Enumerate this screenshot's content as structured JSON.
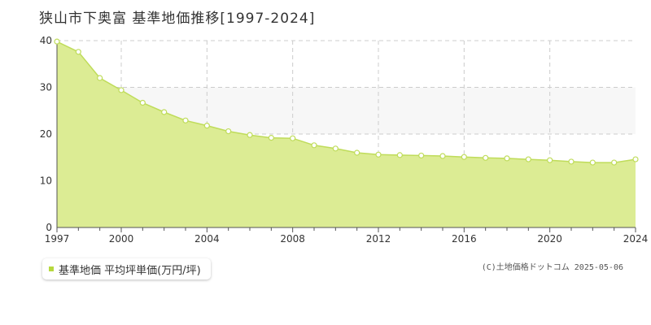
{
  "header": {
    "title": "狭山市下奥富 基準地価推移[1997-2024]"
  },
  "legend": {
    "label": "基準地価 平均坪単価(万円/坪)"
  },
  "footer": {
    "copyright": "(C)土地価格ドットコム 2025-05-06"
  },
  "colors": {
    "fill": "#dcec94",
    "line": "#bfdc5a",
    "band": "#f7f7f7",
    "grid": "#cccccc",
    "axis": "#555555",
    "swatch": "#b6d83e"
  },
  "chart_data": {
    "type": "area",
    "x": [
      1997,
      1998,
      1999,
      2000,
      2001,
      2002,
      2003,
      2004,
      2005,
      2006,
      2007,
      2008,
      2009,
      2010,
      2011,
      2012,
      2013,
      2014,
      2015,
      2016,
      2017,
      2018,
      2019,
      2020,
      2021,
      2022,
      2023,
      2024
    ],
    "values": [
      39.8,
      37.6,
      32.0,
      29.4,
      26.7,
      24.7,
      22.9,
      21.8,
      20.6,
      19.8,
      19.2,
      19.1,
      17.6,
      16.9,
      16.0,
      15.6,
      15.5,
      15.4,
      15.3,
      15.1,
      14.9,
      14.8,
      14.6,
      14.4,
      14.1,
      13.9,
      13.9,
      14.6
    ],
    "xticks": [
      "1997",
      "2000",
      "2004",
      "2008",
      "2012",
      "2016",
      "2020",
      "2024"
    ],
    "yticks": [
      "0",
      "10",
      "20",
      "30",
      "40"
    ],
    "xlim": [
      1997,
      2024
    ],
    "ylim": [
      0,
      40
    ],
    "series_name": "基準地価 平均坪単価(万円/坪)",
    "xlabel": "",
    "ylabel": "",
    "grid": true,
    "band": [
      20,
      30
    ],
    "legend_position": "bottom-left"
  }
}
